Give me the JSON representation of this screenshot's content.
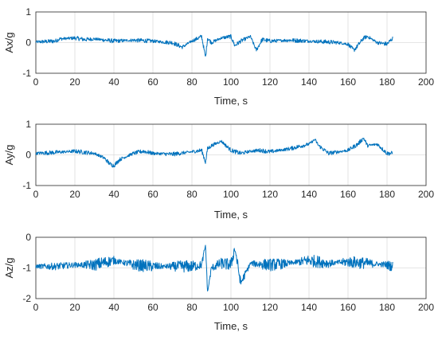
{
  "chart_data": [
    {
      "type": "line",
      "xlabel": "Time, s",
      "ylabel": "Ax/g",
      "xlim": [
        0,
        200
      ],
      "ylim": [
        -1,
        1
      ],
      "xticks": [
        "0",
        "20",
        "40",
        "60",
        "80",
        "100",
        "120",
        "140",
        "160",
        "180",
        "200"
      ],
      "yticks": [
        "-1",
        "0",
        "1"
      ],
      "grid": true,
      "color": "#0072BD",
      "series": [
        {
          "x": [
            0,
            10,
            12,
            20,
            25,
            30,
            40,
            50,
            60,
            65,
            70,
            75,
            80,
            85,
            87,
            88,
            90,
            95,
            100,
            102,
            105,
            110,
            113,
            116,
            120,
            130,
            140,
            150,
            155,
            160,
            163,
            165,
            168,
            170,
            175,
            180,
            183
          ],
          "y": [
            0.02,
            0.05,
            0.12,
            0.15,
            0.1,
            0.12,
            0.05,
            0.08,
            0.05,
            0.02,
            0.0,
            -0.15,
            0.05,
            0.2,
            -0.5,
            0.15,
            0.0,
            0.15,
            0.2,
            -0.1,
            0.05,
            0.2,
            -0.25,
            0.1,
            0.05,
            0.08,
            0.05,
            0.02,
            0.0,
            -0.05,
            -0.25,
            -0.1,
            0.15,
            0.2,
            0.0,
            -0.05,
            0.15
          ]
        }
      ]
    },
    {
      "type": "line",
      "xlabel": "Time, s",
      "ylabel": "Ay/g",
      "xlim": [
        0,
        200
      ],
      "ylim": [
        -1,
        1
      ],
      "xticks": [
        "0",
        "20",
        "40",
        "60",
        "80",
        "100",
        "120",
        "140",
        "160",
        "180",
        "200"
      ],
      "yticks": [
        "-1",
        "0",
        "1"
      ],
      "grid": true,
      "color": "#0072BD",
      "series": [
        {
          "x": [
            0,
            10,
            20,
            30,
            35,
            38,
            40,
            43,
            50,
            55,
            60,
            70,
            80,
            85,
            87,
            88,
            90,
            95,
            100,
            105,
            110,
            115,
            120,
            130,
            140,
            143,
            145,
            150,
            160,
            165,
            168,
            170,
            175,
            180,
            183
          ],
          "y": [
            0.05,
            0.08,
            0.12,
            0.05,
            -0.1,
            -0.3,
            -0.35,
            -0.15,
            0.05,
            0.12,
            0.05,
            0.02,
            0.1,
            0.15,
            -0.25,
            0.2,
            0.3,
            0.45,
            0.15,
            0.05,
            0.12,
            0.15,
            0.1,
            0.2,
            0.35,
            0.5,
            0.3,
            0.05,
            0.15,
            0.35,
            0.55,
            0.3,
            0.35,
            0.05,
            0.05
          ]
        }
      ]
    },
    {
      "type": "line",
      "xlabel": "Time, s",
      "ylabel": "Az/g",
      "xlim": [
        0,
        200
      ],
      "ylim": [
        -2,
        0
      ],
      "xticks": [
        "0",
        "20",
        "40",
        "60",
        "80",
        "100",
        "120",
        "140",
        "160",
        "180",
        "200"
      ],
      "yticks": [
        "-2",
        "-1",
        "0"
      ],
      "grid": true,
      "color": "#0072BD",
      "series": [
        {
          "x": [
            0,
            10,
            20,
            30,
            40,
            50,
            60,
            70,
            80,
            85,
            87,
            88,
            90,
            95,
            100,
            102,
            105,
            110,
            120,
            130,
            140,
            150,
            160,
            170,
            180,
            183
          ],
          "y": [
            -0.95,
            -0.95,
            -0.9,
            -0.9,
            -0.75,
            -0.9,
            -0.95,
            -0.95,
            -0.95,
            -0.9,
            -0.25,
            -1.8,
            -1.0,
            -0.85,
            -0.9,
            -0.35,
            -1.5,
            -0.85,
            -0.9,
            -0.85,
            -0.75,
            -0.85,
            -0.8,
            -0.85,
            -0.9,
            -0.95
          ]
        }
      ]
    }
  ]
}
